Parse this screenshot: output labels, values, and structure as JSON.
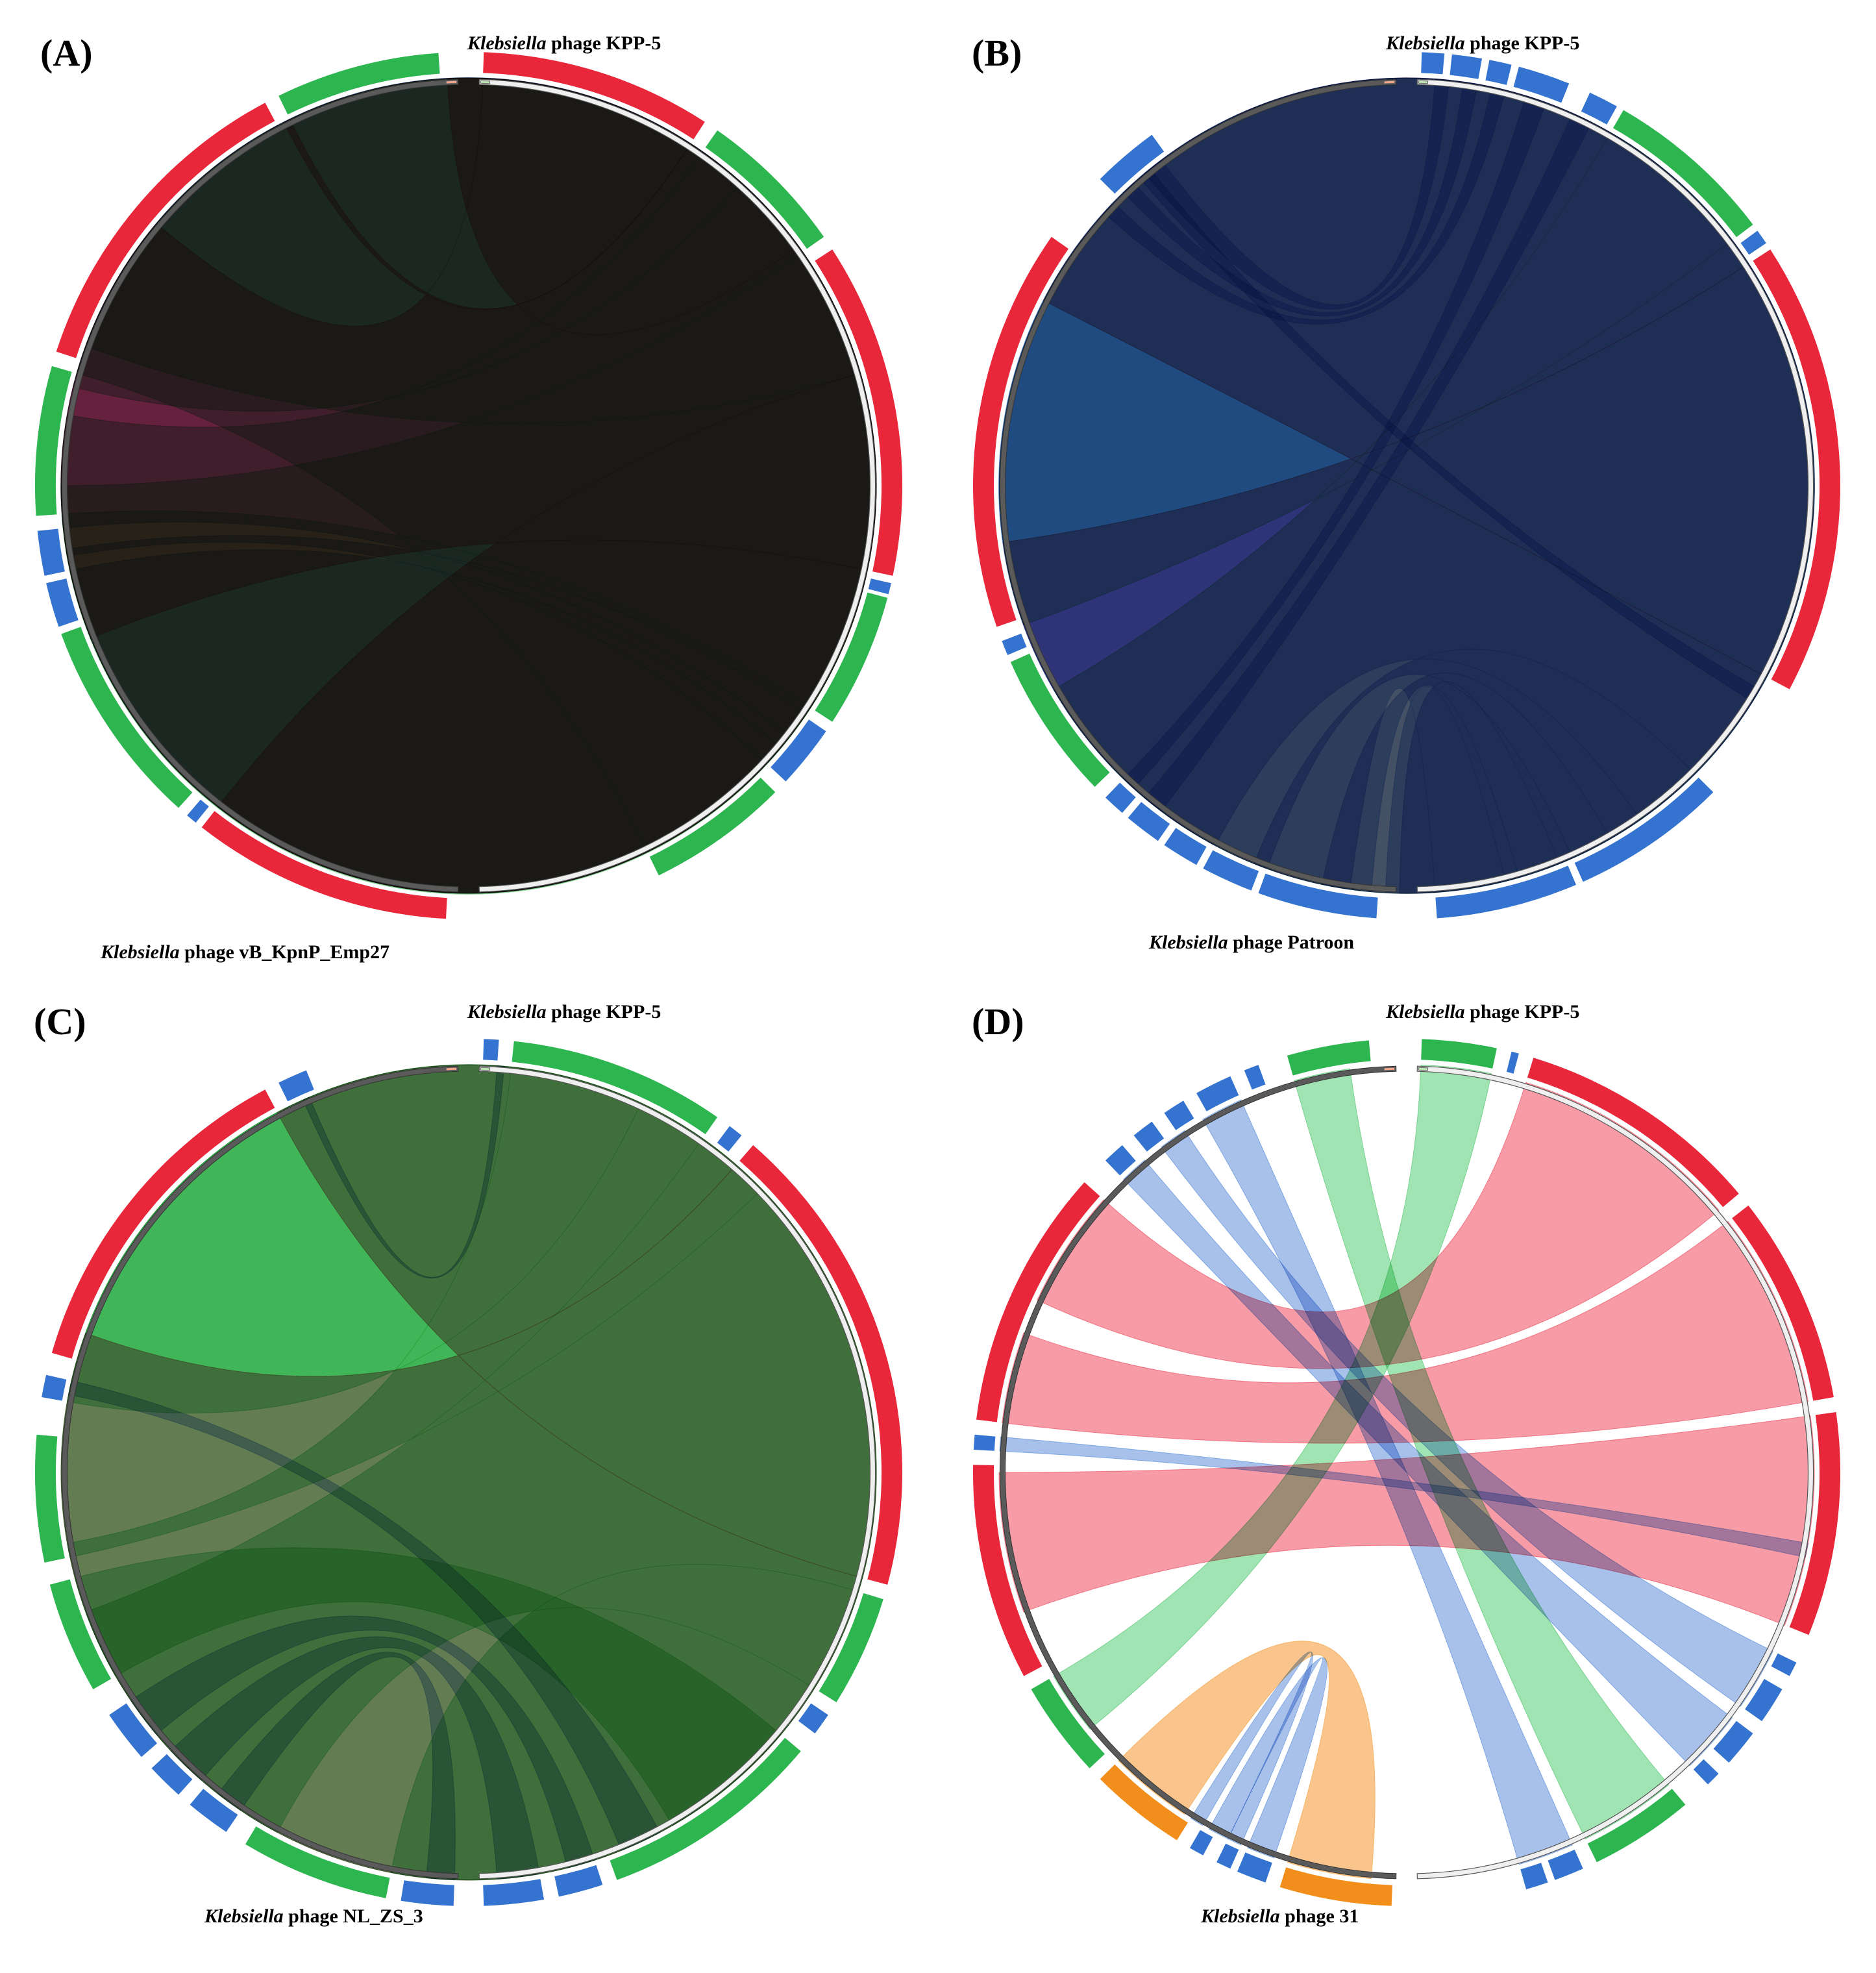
{
  "figure": {
    "colors": {
      "red": "#e8273a",
      "red_ribbon": "#f57f8e",
      "green": "#2db550",
      "green_ribbon": "#86dc9d",
      "blue": "#3473cf",
      "blue_ribbon": "#8fb0e6",
      "orange": "#f28f1c",
      "orange_ribbon": "#f7b56b",
      "query_track": "#5a5a5a",
      "ref_track": "#efefef"
    },
    "reference_genome": {
      "italic": "Klebsiella",
      "rest": " phage KPP-5"
    },
    "panels": [
      {
        "label": "(A)",
        "query": {
          "italic": "Klebsiella",
          "rest": " phage vB_KpnP_Emp27"
        }
      },
      {
        "label": "(B)",
        "query": {
          "italic": "Klebsiella",
          "rest": " phage Patroon"
        }
      },
      {
        "label": "(C)",
        "query": {
          "italic": "Klebsiella",
          "rest": " phage NL_ZS_3"
        }
      },
      {
        "label": "(D)",
        "query": {
          "italic": "Klebsiella",
          "rest": " phage 31"
        }
      }
    ]
  }
}
